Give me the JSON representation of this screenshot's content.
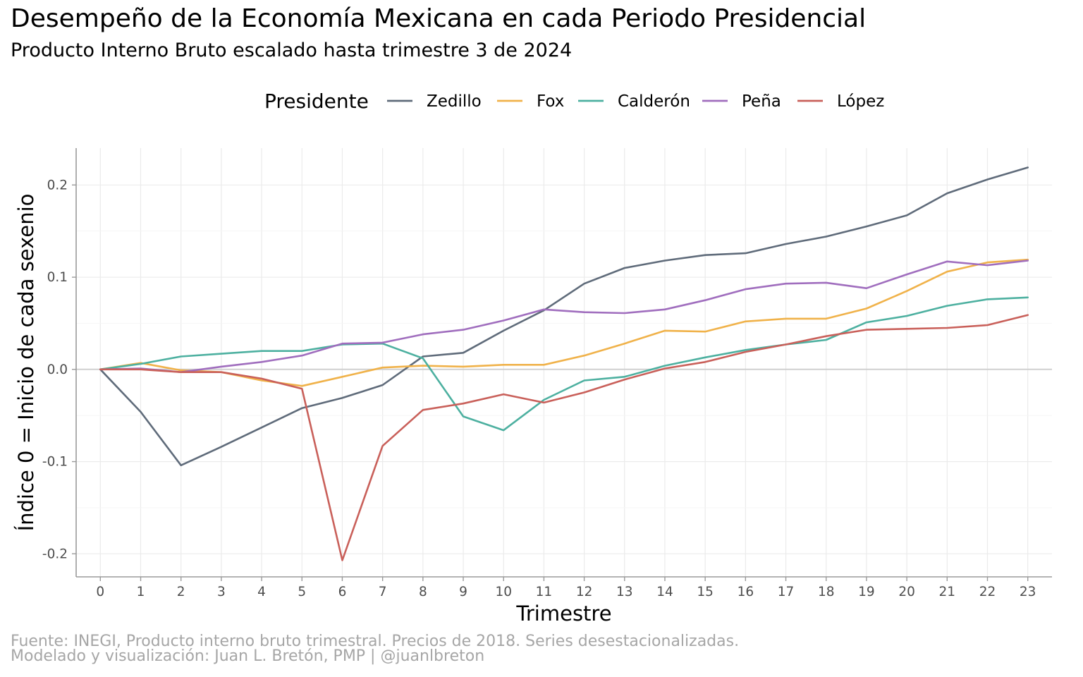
{
  "header": {
    "title": "Desempeño de la Economía Mexicana en cada Periodo Presidencial",
    "subtitle": "Producto Interno Bruto escalado hasta trimestre 3 de 2024"
  },
  "caption": {
    "line1": "Fuente: INEGI, Producto interno bruto trimestral. Precios de 2018. Series desestacionalizadas.",
    "line2": "Modelado y visualización: Juan L. Bretón, PMP | @juanlbreton"
  },
  "chart_data": {
    "type": "line",
    "title": "Desempeño de la Economía Mexicana en cada Periodo Presidencial",
    "subtitle": "Producto Interno Bruto escalado hasta trimestre 3 de 2024",
    "xlabel": "Trimestre",
    "ylabel": "Índice 0 = Inicio de cada sexenio",
    "legend_title": "Presidente",
    "legend_position": "top",
    "grid": true,
    "xlim": [
      -0.6,
      23.6
    ],
    "ylim": [
      -0.225,
      0.24
    ],
    "x": [
      0,
      1,
      2,
      3,
      4,
      5,
      6,
      7,
      8,
      9,
      10,
      11,
      12,
      13,
      14,
      15,
      16,
      17,
      18,
      19,
      20,
      21,
      22,
      23
    ],
    "x_ticks": [
      "0",
      "1",
      "2",
      "3",
      "4",
      "5",
      "6",
      "7",
      "8",
      "9",
      "10",
      "11",
      "12",
      "13",
      "14",
      "15",
      "16",
      "17",
      "18",
      "19",
      "20",
      "21",
      "22",
      "23"
    ],
    "y_ticks": [
      {
        "value": -0.2,
        "label": "-0.2"
      },
      {
        "value": -0.1,
        "label": "-0.1"
      },
      {
        "value": 0.0,
        "label": "0.0"
      },
      {
        "value": 0.1,
        "label": "0.1"
      },
      {
        "value": 0.2,
        "label": "0.2"
      }
    ],
    "series": [
      {
        "name": "Zedillo",
        "color": "#5f6b7a",
        "values": [
          0,
          -0.046,
          -0.104,
          -0.084,
          -0.063,
          -0.042,
          -0.031,
          -0.017,
          0.014,
          0.018,
          0.042,
          0.064,
          0.093,
          0.11,
          0.118,
          0.124,
          0.126,
          0.136,
          0.144,
          0.155,
          0.167,
          0.191,
          0.206,
          0.219
        ]
      },
      {
        "name": "Fox",
        "color": "#f0b24a",
        "values": [
          0,
          0.007,
          -0.001,
          -0.003,
          -0.012,
          -0.018,
          -0.008,
          0.002,
          0.004,
          0.003,
          0.005,
          0.005,
          0.015,
          0.028,
          0.042,
          0.041,
          0.052,
          0.055,
          0.055,
          0.066,
          0.085,
          0.106,
          0.116,
          0.119
        ]
      },
      {
        "name": "Calderón",
        "color": "#4db0a0",
        "values": [
          0,
          0.006,
          0.014,
          0.017,
          0.02,
          0.02,
          0.027,
          0.028,
          0.012,
          -0.051,
          -0.066,
          -0.033,
          -0.012,
          -0.008,
          0.004,
          0.013,
          0.021,
          0.027,
          0.032,
          0.051,
          0.058,
          0.069,
          0.076,
          0.078
        ]
      },
      {
        "name": "Peña",
        "color": "#a06ebe",
        "values": [
          0,
          0.001,
          -0.003,
          0.003,
          0.008,
          0.015,
          0.028,
          0.029,
          0.038,
          0.043,
          0.053,
          0.065,
          0.062,
          0.061,
          0.065,
          0.075,
          0.087,
          0.093,
          0.094,
          0.088,
          0.103,
          0.117,
          0.113,
          0.118
        ]
      },
      {
        "name": "López",
        "color": "#c9605a",
        "values": [
          0,
          0.0,
          -0.003,
          -0.003,
          -0.01,
          -0.021,
          -0.207,
          -0.083,
          -0.044,
          -0.037,
          -0.027,
          -0.036,
          -0.025,
          -0.011,
          0.001,
          0.008,
          0.019,
          0.027,
          0.036,
          0.043,
          0.044,
          0.045,
          0.048,
          0.059
        ]
      }
    ]
  }
}
